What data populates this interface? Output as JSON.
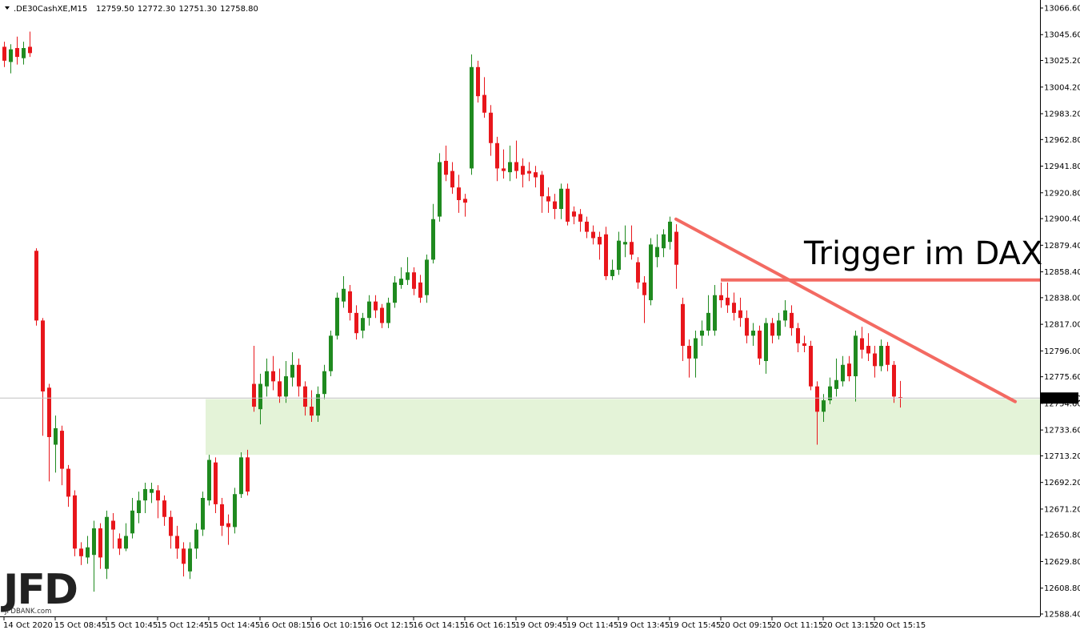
{
  "chart_data": {
    "type": "candlestick",
    "symbol": ".DE30CashXE,M15",
    "last_labels": [
      "12759.50",
      "12772.30",
      "12751.30",
      "12758.80"
    ],
    "annotation": "Trigger im DAX",
    "logo": "JFD",
    "logo_sub": "JFDBANK.com",
    "up_color": "#1f8a1f",
    "down_color": "#e8161b",
    "level_color": "#f36a62",
    "zone_color": "#e4f3d8",
    "ylim": [
      12588.4,
      13066.6
    ],
    "xlim": [
      -0.5,
      161.5
    ],
    "yticks": [
      {
        "value": 13066.6,
        "label": "13066.60"
      },
      {
        "value": 13045.6,
        "label": "13045.60"
      },
      {
        "value": 13025.2,
        "label": "13025.20"
      },
      {
        "value": 13004.2,
        "label": "13004.20"
      },
      {
        "value": 12983.2,
        "label": "12983.20"
      },
      {
        "value": 12962.8,
        "label": "12962.80"
      },
      {
        "value": 12941.8,
        "label": "12941.80"
      },
      {
        "value": 12920.8,
        "label": "12920.80"
      },
      {
        "value": 12900.4,
        "label": "12900.40"
      },
      {
        "value": 12879.4,
        "label": "12879.40"
      },
      {
        "value": 12858.4,
        "label": "12858.40"
      },
      {
        "value": 12838,
        "label": "12838.00"
      },
      {
        "value": 12817,
        "label": "12817.00"
      },
      {
        "value": 12796,
        "label": "12796.00"
      },
      {
        "value": 12775.6,
        "label": "12775.60"
      },
      {
        "value": 12754.6,
        "label": "12754.60"
      },
      {
        "value": 12733.6,
        "label": "12733.60"
      },
      {
        "value": 12713.2,
        "label": "12713.20"
      },
      {
        "value": 12692.2,
        "label": "12692.20"
      },
      {
        "value": 12671.2,
        "label": "12671.20"
      },
      {
        "value": 12650.8,
        "label": "12650.80"
      },
      {
        "value": 12629.8,
        "label": "12629.80"
      },
      {
        "value": 12608.8,
        "label": "12608.80"
      },
      {
        "value": 12588.4,
        "label": "12588.40"
      }
    ],
    "xticks": [
      {
        "value": 0,
        "label": "14 Oct 2020"
      },
      {
        "value": 8,
        "label": "15 Oct 08:45"
      },
      {
        "value": 16,
        "label": "15 Oct 10:45"
      },
      {
        "value": 24,
        "label": "15 Oct 12:45"
      },
      {
        "value": 32,
        "label": "15 Oct 14:45"
      },
      {
        "value": 40,
        "label": "16 Oct 08:15"
      },
      {
        "value": 48,
        "label": "16 Oct 10:15"
      },
      {
        "value": 56,
        "label": "16 Oct 12:15"
      },
      {
        "value": 64,
        "label": "16 Oct 14:15"
      },
      {
        "value": 72,
        "label": "16 Oct 16:15"
      },
      {
        "value": 80,
        "label": "19 Oct 09:45"
      },
      {
        "value": 88,
        "label": "19 Oct 11:45"
      },
      {
        "value": 96,
        "label": "19 Oct 13:45"
      },
      {
        "value": 104,
        "label": "19 Oct 15:45"
      },
      {
        "value": 112,
        "label": "20 Oct 09:15"
      },
      {
        "value": 120,
        "label": "20 Oct 11:15"
      },
      {
        "value": 128,
        "label": "20 Oct 13:15"
      },
      {
        "value": 136,
        "label": "20 Oct 15:15"
      }
    ],
    "zone": [
      12714,
      12758
    ],
    "zone_start": 31.5,
    "horizontal_level": 12852,
    "horizontal_start": 112,
    "trendline": [
      {
        "x": 105,
        "y": 12900
      },
      {
        "x": 158,
        "y": 12756
      }
    ],
    "ohlc": [
      [
        13036,
        13040,
        13020,
        13025
      ],
      [
        13024,
        13038,
        13015,
        13034
      ],
      [
        13035,
        13044,
        13022,
        13028
      ],
      [
        13027,
        13040,
        13022,
        13035
      ],
      [
        13036,
        13048,
        13028,
        13031
      ],
      [
        12875,
        12877,
        12816,
        12820
      ],
      [
        12820,
        12822,
        12729,
        12764
      ],
      [
        12767,
        12770,
        12693,
        12728
      ],
      [
        12722,
        12745,
        12700,
        12735
      ],
      [
        12733,
        12737,
        12690,
        12703
      ],
      [
        12703,
        12706,
        12673,
        12681
      ],
      [
        12682,
        12686,
        12634,
        12640
      ],
      [
        12640,
        12645,
        12627,
        12634
      ],
      [
        12633,
        12650,
        12628,
        12641
      ],
      [
        12635,
        12662,
        12606,
        12656
      ],
      [
        12656,
        12660,
        12624,
        12633
      ],
      [
        12624,
        12670,
        12616,
        12665
      ],
      [
        12662,
        12668,
        12640,
        12655
      ],
      [
        12648,
        12652,
        12635,
        12640
      ],
      [
        12640,
        12660,
        12638,
        12650
      ],
      [
        12652,
        12680,
        12648,
        12670
      ],
      [
        12668,
        12685,
        12660,
        12678
      ],
      [
        12678,
        12692,
        12668,
        12687
      ],
      [
        12684,
        12692,
        12676,
        12687
      ],
      [
        12686,
        12690,
        12664,
        12678
      ],
      [
        12678,
        12682,
        12658,
        12665
      ],
      [
        12665,
        12670,
        12640,
        12650
      ],
      [
        12650,
        12658,
        12632,
        12640
      ],
      [
        12640,
        12645,
        12618,
        12628
      ],
      [
        12622,
        12645,
        12616,
        12640
      ],
      [
        12640,
        12660,
        12632,
        12655
      ],
      [
        12655,
        12685,
        12650,
        12680
      ],
      [
        12678,
        12714,
        12674,
        12710
      ],
      [
        12708,
        12712,
        12668,
        12675
      ],
      [
        12675,
        12680,
        12650,
        12658
      ],
      [
        12660,
        12667,
        12643,
        12657
      ],
      [
        12657,
        12688,
        12652,
        12683
      ],
      [
        12683,
        12716,
        12680,
        12712
      ],
      [
        12712,
        12718,
        12682,
        12685
      ],
      [
        12770,
        12800,
        12748,
        12752
      ],
      [
        12750,
        12778,
        12738,
        12770
      ],
      [
        12768,
        12790,
        12760,
        12780
      ],
      [
        12780,
        12792,
        12765,
        12772
      ],
      [
        12772,
        12782,
        12755,
        12760
      ],
      [
        12760,
        12788,
        12755,
        12776
      ],
      [
        12775,
        12795,
        12768,
        12785
      ],
      [
        12785,
        12790,
        12760,
        12768
      ],
      [
        12768,
        12772,
        12745,
        12752
      ],
      [
        12752,
        12765,
        12740,
        12745
      ],
      [
        12745,
        12768,
        12740,
        12762
      ],
      [
        12762,
        12785,
        12758,
        12780
      ],
      [
        12780,
        12812,
        12776,
        12808
      ],
      [
        12808,
        12842,
        12805,
        12838
      ],
      [
        12835,
        12855,
        12830,
        12845
      ],
      [
        12843,
        12848,
        12820,
        12826
      ],
      [
        12826,
        12832,
        12805,
        12810
      ],
      [
        12812,
        12826,
        12806,
        12822
      ],
      [
        12822,
        12840,
        12816,
        12835
      ],
      [
        12835,
        12840,
        12822,
        12828
      ],
      [
        12830,
        12833,
        12814,
        12818
      ],
      [
        12818,
        12838,
        12814,
        12834
      ],
      [
        12834,
        12855,
        12830,
        12850
      ],
      [
        12848,
        12862,
        12845,
        12853
      ],
      [
        12852,
        12870,
        12848,
        12858
      ],
      [
        12858,
        12862,
        12840,
        12845
      ],
      [
        12850,
        12856,
        12834,
        12838
      ],
      [
        12840,
        12872,
        12834,
        12868
      ],
      [
        12868,
        12912,
        12865,
        12900
      ],
      [
        12902,
        12952,
        12898,
        12945
      ],
      [
        12946,
        12958,
        12930,
        12935
      ],
      [
        12938,
        12945,
        12920,
        12925
      ],
      [
        12925,
        12935,
        12905,
        12915
      ],
      [
        12916,
        12920,
        12902,
        12913
      ],
      [
        12940,
        13030,
        12935,
        13020
      ],
      [
        13020,
        13025,
        12992,
        12997
      ],
      [
        12998,
        13012,
        12980,
        12984
      ],
      [
        12984,
        12990,
        12950,
        12960
      ],
      [
        12960,
        12965,
        12930,
        12940
      ],
      [
        12940,
        12955,
        12932,
        12938
      ],
      [
        12937,
        12958,
        12930,
        12945
      ],
      [
        12945,
        12962,
        12932,
        12938
      ],
      [
        12942,
        12948,
        12925,
        12935
      ],
      [
        12938,
        12945,
        12930,
        12936
      ],
      [
        12937,
        12942,
        12925,
        12933
      ],
      [
        12935,
        12938,
        12905,
        12918
      ],
      [
        12918,
        12925,
        12905,
        12914
      ],
      [
        12914,
        12920,
        12900,
        12908
      ],
      [
        12908,
        12928,
        12900,
        12924
      ],
      [
        12924,
        12928,
        12895,
        12898
      ],
      [
        12906,
        12910,
        12896,
        12902
      ],
      [
        12904,
        12908,
        12890,
        12898
      ],
      [
        12898,
        12902,
        12885,
        12890
      ],
      [
        12890,
        12895,
        12880,
        12885
      ],
      [
        12886,
        12890,
        12868,
        12880
      ],
      [
        12888,
        12894,
        12852,
        12855
      ],
      [
        12855,
        12868,
        12852,
        12860
      ],
      [
        12860,
        12890,
        12856,
        12883
      ],
      [
        12880,
        12895,
        12870,
        12882
      ],
      [
        12882,
        12895,
        12868,
        12872
      ],
      [
        12866,
        12870,
        12845,
        12850
      ],
      [
        12850,
        12855,
        12818,
        12840
      ],
      [
        12836,
        12885,
        12832,
        12880
      ],
      [
        12870,
        12888,
        12862,
        12878
      ],
      [
        12877,
        12892,
        12870,
        12888
      ],
      [
        12882,
        12902,
        12876,
        12898
      ],
      [
        12890,
        12896,
        12845,
        12864
      ],
      [
        12833,
        12838,
        12788,
        12800
      ],
      [
        12800,
        12805,
        12775,
        12790
      ],
      [
        12790,
        12812,
        12775,
        12806
      ],
      [
        12808,
        12820,
        12800,
        12812
      ],
      [
        12812,
        12840,
        12808,
        12826
      ],
      [
        12812,
        12848,
        12808,
        12840
      ],
      [
        12840,
        12850,
        12830,
        12836
      ],
      [
        12838,
        12850,
        12826,
        12832
      ],
      [
        12834,
        12842,
        12820,
        12826
      ],
      [
        12828,
        12838,
        12815,
        12822
      ],
      [
        12822,
        12828,
        12802,
        12808
      ],
      [
        12808,
        12818,
        12800,
        12812
      ],
      [
        12812,
        12816,
        12785,
        12790
      ],
      [
        12788,
        12822,
        12778,
        12818
      ],
      [
        12818,
        12822,
        12802,
        12808
      ],
      [
        12808,
        12826,
        12805,
        12820
      ],
      [
        12820,
        12836,
        12815,
        12828
      ],
      [
        12826,
        12832,
        12808,
        12814
      ],
      [
        12814,
        12818,
        12795,
        12802
      ],
      [
        12802,
        12808,
        12795,
        12800
      ],
      [
        12800,
        12804,
        12765,
        12768
      ],
      [
        12768,
        12772,
        12722,
        12748
      ],
      [
        12748,
        12762,
        12740,
        12757
      ],
      [
        12757,
        12775,
        12754,
        12768
      ],
      [
        12766,
        12790,
        12760,
        12773
      ],
      [
        12772,
        12792,
        12768,
        12785
      ],
      [
        12786,
        12792,
        12772,
        12776
      ],
      [
        12776,
        12812,
        12756,
        12808
      ],
      [
        12806,
        12815,
        12790,
        12797
      ],
      [
        12800,
        12810,
        12788,
        12794
      ],
      [
        12794,
        12800,
        12775,
        12784
      ],
      [
        12784,
        12805,
        12780,
        12800
      ],
      [
        12800,
        12803,
        12780,
        12785
      ],
      [
        12785,
        12788,
        12755,
        12760
      ],
      [
        12759.5,
        12772.3,
        12751.3,
        12758.8
      ]
    ]
  }
}
